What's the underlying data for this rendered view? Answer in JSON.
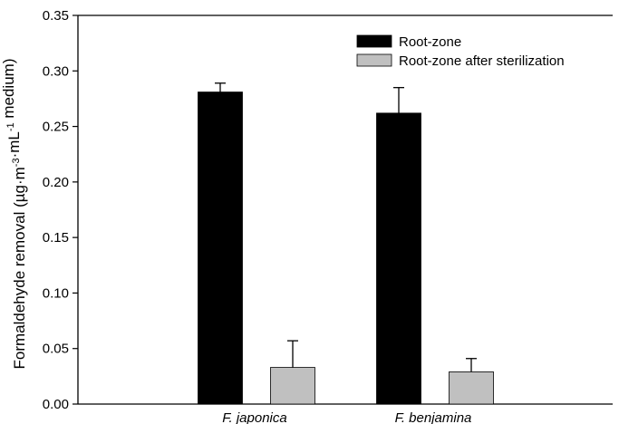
{
  "chart_data": {
    "type": "bar",
    "categories": [
      "F. japonica",
      "F. benjamina"
    ],
    "series": [
      {
        "name": "Root-zone",
        "color": "#000000",
        "values": [
          0.281,
          0.262
        ],
        "errors": [
          0.008,
          0.023
        ]
      },
      {
        "name": "Root-zone after sterilization",
        "color": "#c0c0c0",
        "values": [
          0.033,
          0.029
        ],
        "errors": [
          0.024,
          0.012
        ]
      }
    ],
    "ylabel_parts": [
      {
        "text": "Formaldehyde removal (µg·m",
        "sup": false
      },
      {
        "text": "-3",
        "sup": true
      },
      {
        "text": "·mL",
        "sup": false
      },
      {
        "text": "-1",
        "sup": true
      },
      {
        "text": " medium)",
        "sup": false
      }
    ],
    "xlabel": "",
    "ylim": [
      0,
      0.35
    ],
    "yticks": [
      "0.00",
      "0.05",
      "0.10",
      "0.15",
      "0.20",
      "0.25",
      "0.30",
      "0.35"
    ],
    "grid": false,
    "legend_position": "top-right"
  }
}
